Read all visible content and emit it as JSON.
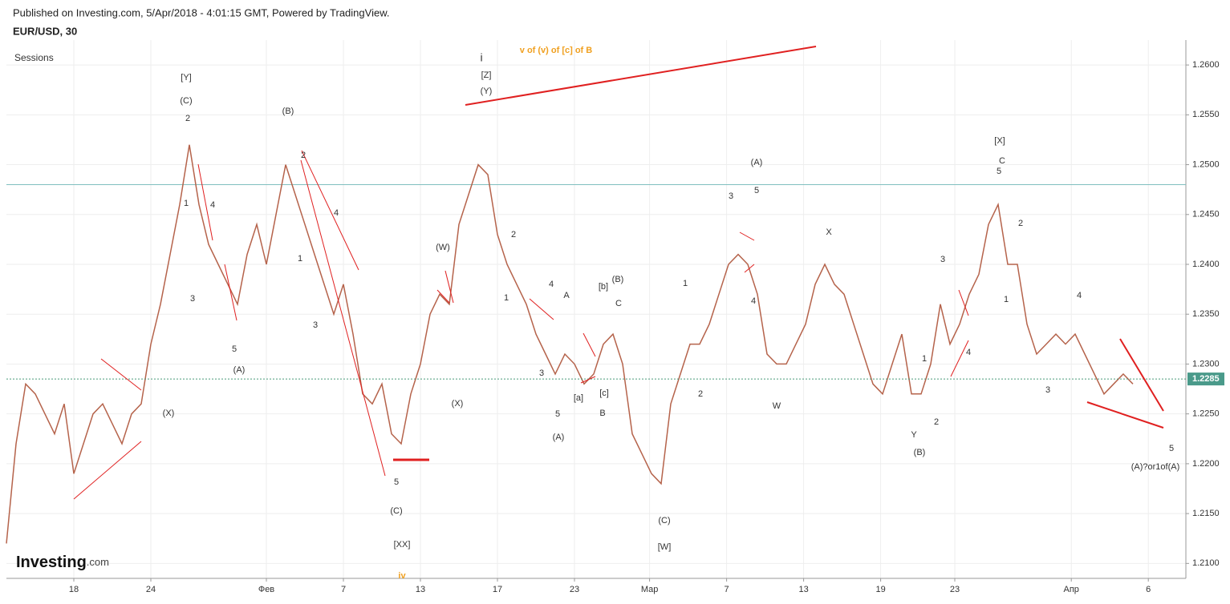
{
  "header": {
    "published": "Published on Investing.com, 5/Apr/2018 - 4:01:15 GMT, Powered by TradingView.",
    "symbol": "EUR/USD, 30",
    "sessions": "Sessions",
    "logo": "Investing",
    "logo_suffix": ".com"
  },
  "chart_data": {
    "type": "line",
    "series": [
      {
        "name": "EUR/USD",
        "color": "#b5634b",
        "values": [
          1.212,
          1.222,
          1.228,
          1.227,
          1.225,
          1.223,
          1.226,
          1.219,
          1.222,
          1.225,
          1.226,
          1.224,
          1.222,
          1.225,
          1.226,
          1.232,
          1.236,
          1.241,
          1.246,
          1.252,
          1.246,
          1.242,
          1.24,
          1.238,
          1.236,
          1.241,
          1.244,
          1.24,
          1.245,
          1.25,
          1.247,
          1.244,
          1.241,
          1.238,
          1.235,
          1.238,
          1.233,
          1.227,
          1.226,
          1.228,
          1.223,
          1.222,
          1.227,
          1.23,
          1.235,
          1.237,
          1.236,
          1.244,
          1.247,
          1.25,
          1.249,
          1.243,
          1.24,
          1.238,
          1.236,
          1.233,
          1.231,
          1.229,
          1.231,
          1.23,
          1.228,
          1.229,
          1.232,
          1.233,
          1.23,
          1.223,
          1.221,
          1.219,
          1.218,
          1.226,
          1.229,
          1.232,
          1.232,
          1.234,
          1.237,
          1.24,
          1.241,
          1.24,
          1.237,
          1.231,
          1.23,
          1.23,
          1.232,
          1.234,
          1.238,
          1.24,
          1.238,
          1.237,
          1.234,
          1.231,
          1.228,
          1.227,
          1.23,
          1.233,
          1.227,
          1.227,
          1.23,
          1.236,
          1.232,
          1.234,
          1.237,
          1.239,
          1.244,
          1.246,
          1.24,
          1.24,
          1.234,
          1.231,
          1.232,
          1.233,
          1.232,
          1.233,
          1.231,
          1.229,
          1.227,
          1.228,
          1.229,
          1.228
        ]
      }
    ],
    "xlim": [
      0,
      122.5
    ],
    "xticks": [
      {
        "value": 7,
        "label": "18"
      },
      {
        "value": 15,
        "label": "24"
      },
      {
        "value": 27,
        "label": "Фев"
      },
      {
        "value": 35,
        "label": "7"
      },
      {
        "value": 43,
        "label": "13"
      },
      {
        "value": 51,
        "label": "17"
      },
      {
        "value": 59,
        "label": "23"
      },
      {
        "value": 66.8,
        "label": "Мар"
      },
      {
        "value": 74.8,
        "label": "7"
      },
      {
        "value": 82.8,
        "label": "13"
      },
      {
        "value": 90.8,
        "label": "19"
      },
      {
        "value": 98.5,
        "label": "23"
      },
      {
        "value": 110.6,
        "label": "Апр"
      },
      {
        "value": 118.6,
        "label": "6"
      }
    ],
    "ylim": [
      1.2085,
      1.2625
    ],
    "yticks": [
      {
        "value": 1.21,
        "label": "1.2100"
      },
      {
        "value": 1.215,
        "label": "1.2150"
      },
      {
        "value": 1.22,
        "label": "1.2200"
      },
      {
        "value": 1.225,
        "label": "1.2250"
      },
      {
        "value": 1.23,
        "label": "1.2300"
      },
      {
        "value": 1.235,
        "label": "1.2350"
      },
      {
        "value": 1.24,
        "label": "1.2400"
      },
      {
        "value": 1.245,
        "label": "1.2450"
      },
      {
        "value": 1.25,
        "label": "1.2500"
      },
      {
        "value": 1.255,
        "label": "1.2550"
      },
      {
        "value": 1.26,
        "label": "1.2600"
      }
    ],
    "last_price": 1.2285,
    "hline": 1.248,
    "grid": true,
    "annotations": [
      "[Y]",
      "(C)",
      "2",
      "1",
      "4",
      "3",
      "5",
      "(A)",
      "(X)",
      "(B)",
      "2",
      "4",
      "1",
      "3",
      "5",
      "(C)",
      "[XX]",
      "iv",
      "i",
      "[Z]",
      "(Y)",
      "v of (v) of [c] of B",
      "(W)",
      "(X)",
      "2",
      "1",
      "4",
      "A",
      "3",
      "5",
      "(A)",
      "[b]",
      "(B)",
      "C",
      "[a]",
      "[c]",
      "B",
      "(C)",
      "[W]",
      "1",
      "2",
      "3",
      "5",
      "(A)",
      "4",
      "W",
      "X",
      "1",
      "2",
      "Y",
      "(B)",
      "3",
      "4",
      "[X]",
      "C",
      "5",
      "2",
      "1",
      "3",
      "4",
      "5",
      "(A)?or1of(A)"
    ]
  }
}
